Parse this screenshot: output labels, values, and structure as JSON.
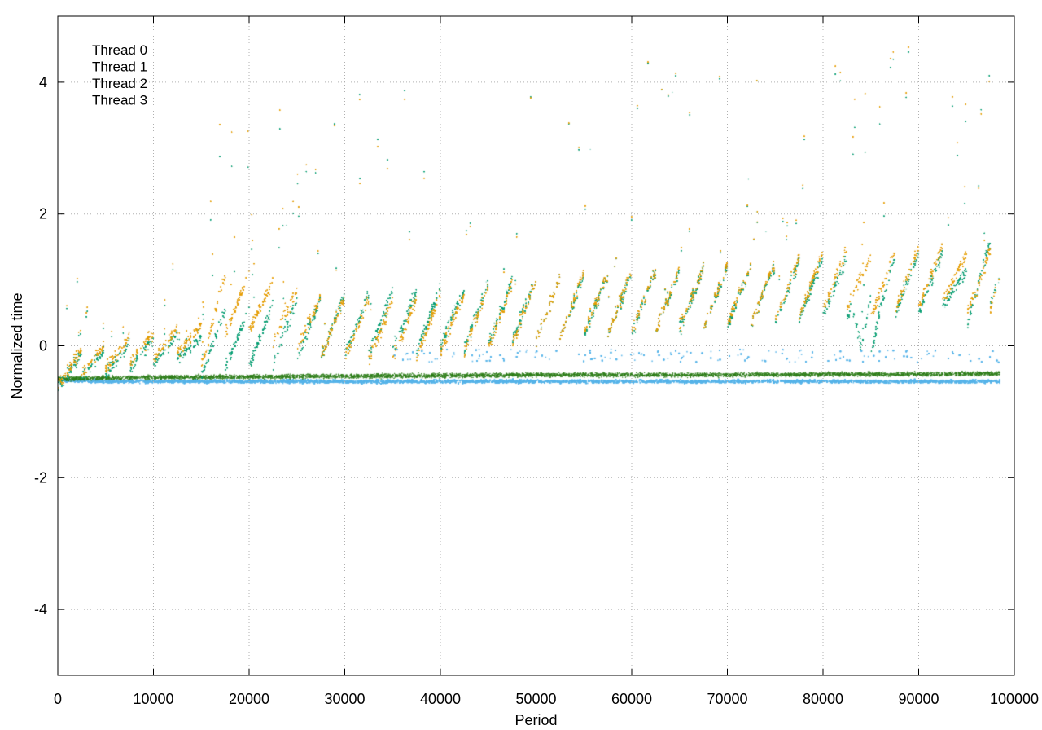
{
  "chart_data": {
    "type": "scatter",
    "title": "",
    "xlabel": "Period",
    "ylabel": "Normalized time",
    "xlim": [
      0,
      100000
    ],
    "ylim": [
      -5,
      5
    ],
    "x_ticks": [
      0,
      10000,
      20000,
      30000,
      40000,
      50000,
      60000,
      70000,
      80000,
      90000,
      100000
    ],
    "x_tick_labels": [
      "0",
      "10000",
      "20000",
      "30000",
      "40000",
      "50000",
      "60000",
      "70000",
      "80000",
      "90000",
      "100000"
    ],
    "y_ticks": [
      -4,
      -2,
      0,
      2,
      4
    ],
    "y_tick_labels": [
      "-4",
      "-2",
      "0",
      "2",
      "4"
    ],
    "grid": true,
    "legend_position": "top-left",
    "series": [
      {
        "name": "Thread 0",
        "color": "#009e73",
        "points": [
          [
            0,
            -0.48
          ],
          [
            2000,
            -0.35
          ],
          [
            5000,
            -0.28
          ],
          [
            8000,
            -0.2
          ],
          [
            10000,
            -0.12
          ],
          [
            13000,
            -0.05
          ],
          [
            15000,
            -0.1
          ],
          [
            17000,
            0.0
          ],
          [
            20000,
            0.05
          ],
          [
            23000,
            0.1
          ],
          [
            25000,
            0.15
          ],
          [
            28000,
            0.2
          ],
          [
            30000,
            0.25
          ],
          [
            33000,
            0.25
          ],
          [
            35000,
            0.3
          ],
          [
            38000,
            0.3
          ],
          [
            40000,
            0.35
          ],
          [
            43000,
            0.35
          ],
          [
            45000,
            0.4
          ],
          [
            48000,
            0.45
          ],
          [
            50000,
            0.45
          ],
          [
            53000,
            0.5
          ],
          [
            55000,
            0.5
          ],
          [
            58000,
            0.55
          ],
          [
            60000,
            0.55
          ],
          [
            63000,
            0.6
          ],
          [
            65000,
            0.6
          ],
          [
            68000,
            0.65
          ],
          [
            70000,
            0.65
          ],
          [
            73000,
            0.7
          ],
          [
            75000,
            0.7
          ],
          [
            78000,
            0.75
          ],
          [
            80000,
            0.8
          ],
          [
            83000,
            0.8
          ],
          [
            84000,
            -0.2
          ],
          [
            86000,
            0.6
          ],
          [
            88000,
            0.85
          ],
          [
            90000,
            0.85
          ],
          [
            93000,
            0.9
          ],
          [
            95000,
            0.6
          ],
          [
            97000,
            1.0
          ],
          [
            98500,
            1.0
          ]
        ]
      },
      {
        "name": "Thread 1",
        "color": "#56b4e9",
        "points": [
          [
            0,
            -0.52
          ],
          [
            5000,
            -0.54
          ],
          [
            10000,
            -0.54
          ],
          [
            20000,
            -0.54
          ],
          [
            30000,
            -0.54
          ],
          [
            40000,
            -0.54
          ],
          [
            50000,
            -0.54
          ],
          [
            60000,
            -0.54
          ],
          [
            70000,
            -0.54
          ],
          [
            80000,
            -0.54
          ],
          [
            90000,
            -0.54
          ],
          [
            98500,
            -0.54
          ],
          [
            40000,
            -0.2
          ],
          [
            60000,
            -0.15
          ],
          [
            70000,
            -0.12
          ],
          [
            80000,
            -0.1
          ],
          [
            90000,
            -0.1
          ],
          [
            98500,
            -0.05
          ]
        ]
      },
      {
        "name": "Thread 2",
        "color": "#2e7d1a",
        "points": [
          [
            0,
            -0.5
          ],
          [
            10000,
            -0.48
          ],
          [
            20000,
            -0.47
          ],
          [
            30000,
            -0.46
          ],
          [
            40000,
            -0.45
          ],
          [
            50000,
            -0.44
          ],
          [
            60000,
            -0.44
          ],
          [
            70000,
            -0.44
          ],
          [
            80000,
            -0.43
          ],
          [
            90000,
            -0.43
          ],
          [
            98500,
            -0.42
          ]
        ]
      },
      {
        "name": "Thread 3",
        "color": "#e69f00",
        "points": [
          [
            0,
            -0.45
          ],
          [
            2000,
            -0.3
          ],
          [
            5000,
            -0.2
          ],
          [
            8000,
            -0.1
          ],
          [
            10000,
            -0.05
          ],
          [
            13000,
            0.05
          ],
          [
            15500,
            0.1
          ],
          [
            17000,
            0.5
          ],
          [
            20000,
            0.6
          ],
          [
            23000,
            0.4
          ],
          [
            25000,
            0.3
          ],
          [
            28000,
            0.2
          ],
          [
            30000,
            0.2
          ],
          [
            33000,
            0.15
          ],
          [
            35000,
            0.15
          ],
          [
            38000,
            0.2
          ],
          [
            40000,
            0.25
          ],
          [
            43000,
            0.3
          ],
          [
            45000,
            0.35
          ],
          [
            48000,
            0.4
          ],
          [
            50000,
            0.45
          ],
          [
            53000,
            0.5
          ],
          [
            55000,
            0.55
          ],
          [
            58000,
            0.55
          ],
          [
            60000,
            0.6
          ],
          [
            63000,
            0.6
          ],
          [
            65000,
            0.65
          ],
          [
            68000,
            0.65
          ],
          [
            70000,
            0.7
          ],
          [
            73000,
            0.7
          ],
          [
            75000,
            0.75
          ],
          [
            78000,
            0.8
          ],
          [
            80000,
            0.9
          ],
          [
            83000,
            0.95
          ],
          [
            85000,
            0.8
          ],
          [
            88000,
            0.9
          ],
          [
            90000,
            0.95
          ],
          [
            93000,
            1.0
          ],
          [
            96000,
            0.8
          ],
          [
            98500,
            1.0
          ]
        ]
      }
    ]
  }
}
